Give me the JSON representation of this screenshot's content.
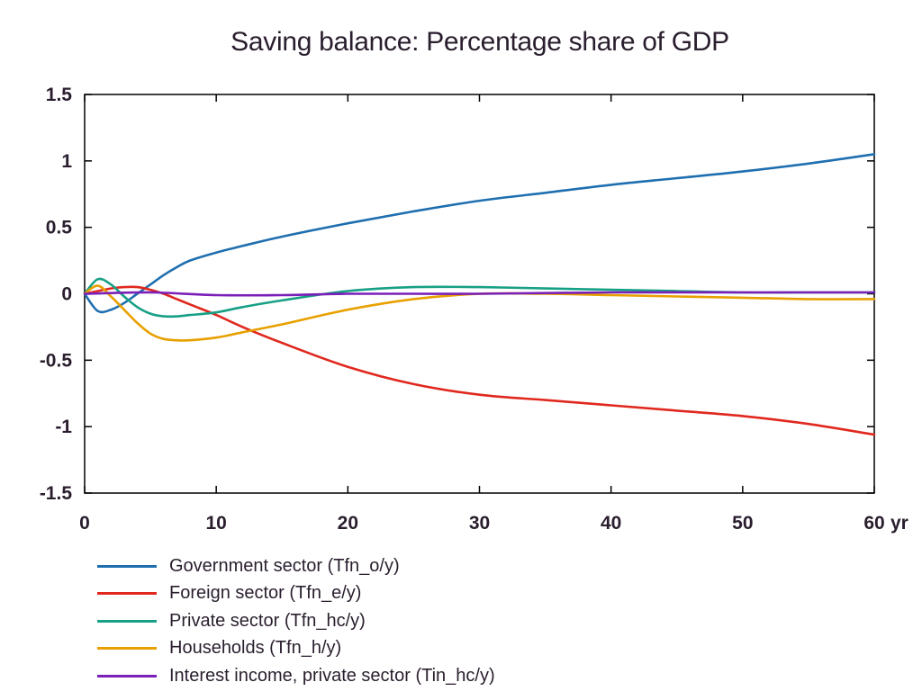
{
  "chart_data": {
    "type": "line",
    "title": "Saving balance: Percentage share of GDP",
    "xlabel": "yr",
    "ylabel": "",
    "xlim": [
      0,
      60
    ],
    "ylim": [
      -1.5,
      1.5
    ],
    "x_ticks": [
      "0",
      "10",
      "20",
      "30",
      "40",
      "50",
      "60"
    ],
    "y_ticks": [
      "1.5",
      "1",
      "0.5",
      "0",
      "-0.5",
      "-1",
      "-1.5"
    ],
    "grid": false,
    "legend_position": "bottom",
    "series": [
      {
        "name": "Government sector (Tfn_o/y)",
        "color": "#1f6fb0",
        "x": [
          0,
          1,
          2,
          3,
          4,
          5,
          6,
          7,
          8,
          10,
          12,
          15,
          20,
          25,
          30,
          35,
          40,
          45,
          50,
          55,
          60
        ],
        "y": [
          0,
          -0.13,
          -0.12,
          -0.07,
          0.0,
          0.07,
          0.14,
          0.2,
          0.25,
          0.31,
          0.36,
          0.43,
          0.53,
          0.62,
          0.7,
          0.76,
          0.82,
          0.87,
          0.92,
          0.98,
          1.05
        ]
      },
      {
        "name": "Foreign sector (Tfn_e/y)",
        "color": "#e0281e",
        "x": [
          0,
          1,
          2,
          3,
          4,
          5,
          6,
          7,
          8,
          10,
          12,
          15,
          20,
          25,
          30,
          35,
          40,
          45,
          50,
          55,
          60
        ],
        "y": [
          0,
          0.02,
          0.04,
          0.05,
          0.05,
          0.03,
          0.0,
          -0.04,
          -0.08,
          -0.16,
          -0.25,
          -0.37,
          -0.55,
          -0.68,
          -0.76,
          -0.8,
          -0.84,
          -0.88,
          -0.92,
          -0.98,
          -1.06
        ]
      },
      {
        "name": "Private sector (Tfn_hc/y)",
        "color": "#17a085",
        "x": [
          0,
          1,
          2,
          3,
          4,
          5,
          6,
          7,
          8,
          10,
          12,
          15,
          20,
          25,
          30,
          35,
          40,
          45,
          50,
          55,
          60
        ],
        "y": [
          0,
          0.11,
          0.07,
          -0.02,
          -0.1,
          -0.15,
          -0.17,
          -0.17,
          -0.16,
          -0.14,
          -0.1,
          -0.05,
          0.02,
          0.05,
          0.05,
          0.04,
          0.03,
          0.02,
          0.01,
          0.01,
          0.01
        ]
      },
      {
        "name": "Households (Tfn_h/y)",
        "color": "#e8a000",
        "x": [
          0,
          1,
          2,
          3,
          4,
          5,
          6,
          7,
          8,
          10,
          12,
          15,
          20,
          25,
          30,
          35,
          40,
          45,
          50,
          55,
          60
        ],
        "y": [
          0,
          0.06,
          -0.02,
          -0.12,
          -0.22,
          -0.3,
          -0.34,
          -0.35,
          -0.35,
          -0.33,
          -0.29,
          -0.23,
          -0.12,
          -0.04,
          0.0,
          0.0,
          -0.01,
          -0.02,
          -0.03,
          -0.04,
          -0.04
        ]
      },
      {
        "name": "Interest income, private sector (Tin_hc/y)",
        "color": "#7a1fb8",
        "x": [
          0,
          5,
          10,
          15,
          20,
          25,
          30,
          40,
          50,
          60
        ],
        "y": [
          0,
          0.01,
          -0.01,
          -0.01,
          0.0,
          0.0,
          0.0,
          0.01,
          0.01,
          0.01
        ]
      }
    ]
  }
}
